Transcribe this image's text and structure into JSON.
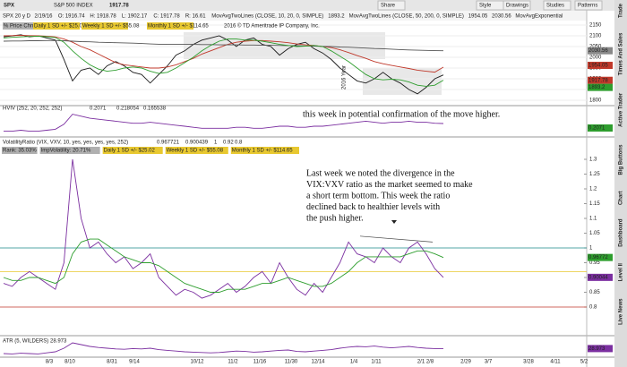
{
  "toolbar": {
    "symbol": "SPX",
    "name": "S&P 500 INDEX",
    "last": "1917.78",
    "buttons": [
      "Share",
      "Style",
      "Drawings",
      "Studies",
      "Patterns"
    ]
  },
  "header": {
    "items": [
      "SPX 20 y D",
      "2/19/16",
      "O: 1916.74",
      "H: 1918.78",
      "L: 1902.17",
      "C: 1917.78",
      "R: 16.61",
      "MovAvgTwoLines (CLOSE, 10, 20, 0, SIMPLE)",
      "1893.2",
      "MovAvgTwoLines (CLOSE, 50, 200, 0, SIMPLE)",
      "1954.05",
      "2030.56",
      "MovAvgExponential"
    ]
  },
  "price": {
    "labels": [
      "% Price Chng 4.85",
      "Daily 1 SD +/- $25.02",
      "Weekly 1 SD +/- $55.08",
      "Monthly 1 SD +/- $114.65"
    ],
    "copyright": "2016 © TD Ameritrade IP Company, Inc.",
    "year": "2016 Year",
    "ylim": [
      1800,
      2150
    ],
    "yticks": [
      2150,
      2100,
      2050,
      2000,
      1950,
      1900,
      1850,
      1800
    ],
    "current": [
      "2030.56",
      "1954.05",
      "1917.78",
      "1893.2"
    ],
    "series": [
      {
        "name": "Close",
        "color": "#1a1a1a",
        "values": [
          2095,
          2100,
          2105,
          2095,
          2100,
          2090,
          2080,
          1990,
          1890,
          1940,
          1950,
          1920,
          1960,
          1980,
          1960,
          1930,
          1920,
          1880,
          1920,
          1960,
          2010,
          2030,
          2060,
          2080,
          2090,
          2100,
          2080,
          2050,
          2080,
          2090,
          2060,
          2050,
          2010,
          2040,
          2060,
          2070,
          2040,
          2020,
          1990,
          1950,
          1920,
          1890,
          1880,
          1900,
          1930,
          1900,
          1880,
          1850,
          1830,
          1860,
          1900,
          1917.78
        ]
      },
      {
        "name": "SMA 50",
        "color": "#c0392b",
        "values": [
          2100,
          2101,
          2102,
          2101,
          2100,
          2098,
          2095,
          2085,
          2070,
          2050,
          2035,
          2015,
          1995,
          1975,
          1965,
          1960,
          1955,
          1950,
          1950,
          1955,
          1965,
          1980,
          1995,
          2015,
          2030,
          2045,
          2060,
          2070,
          2075,
          2078,
          2078,
          2075,
          2072,
          2068,
          2062,
          2058,
          2055,
          2050,
          2045,
          2035,
          2022,
          2008,
          1995,
          1980,
          1970,
          1962,
          1955,
          1948,
          1940,
          1935,
          1931,
          1954.05
        ]
      },
      {
        "name": "SMA 200",
        "color": "#555555",
        "values": [
          2075,
          2076,
          2076,
          2077,
          2077,
          2078,
          2078,
          2077,
          2075,
          2073,
          2072,
          2070,
          2069,
          2068,
          2067,
          2066,
          2064,
          2062,
          2061,
          2060,
          2060,
          2060,
          2060,
          2059,
          2059,
          2058,
          2058,
          2058,
          2057,
          2057,
          2056,
          2056,
          2055,
          2054,
          2054,
          2053,
          2052,
          2051,
          2050,
          2048,
          2047,
          2045,
          2043,
          2041,
          2040,
          2038,
          2036,
          2034,
          2033,
          2032,
          2031,
          2030.56
        ]
      },
      {
        "name": "SMA 20",
        "color": "#2e9e2e",
        "values": [
          2090,
          2093,
          2095,
          2097,
          2098,
          2096,
          2092,
          2070,
          2030,
          1995,
          1965,
          1945,
          1935,
          1940,
          1950,
          1955,
          1950,
          1935,
          1925,
          1930,
          1950,
          1975,
          2000,
          2030,
          2055,
          2075,
          2085,
          2085,
          2080,
          2080,
          2075,
          2068,
          2060,
          2055,
          2050,
          2052,
          2055,
          2050,
          2030,
          2005,
          1980,
          1950,
          1920,
          1900,
          1895,
          1898,
          1895,
          1885,
          1870,
          1865,
          1870,
          1893.2
        ]
      }
    ]
  },
  "hv": {
    "label": "HVIV (252, 20, 252, 252)",
    "values_text": [
      "0.2071",
      "0.218054",
      "0.165538"
    ],
    "note": "this week in potential confirmation of the move higher.",
    "current": "0.2071",
    "ylim": [
      0.1,
      0.35
    ],
    "series": [
      {
        "name": "HV",
        "color": "#7b2fa0",
        "values": [
          0.13,
          0.13,
          0.14,
          0.13,
          0.13,
          0.14,
          0.15,
          0.2,
          0.3,
          0.28,
          0.26,
          0.25,
          0.24,
          0.23,
          0.22,
          0.21,
          0.21,
          0.22,
          0.21,
          0.2,
          0.19,
          0.18,
          0.17,
          0.16,
          0.16,
          0.16,
          0.16,
          0.17,
          0.17,
          0.16,
          0.16,
          0.17,
          0.18,
          0.18,
          0.17,
          0.17,
          0.18,
          0.18,
          0.19,
          0.2,
          0.21,
          0.22,
          0.23,
          0.22,
          0.21,
          0.22,
          0.22,
          0.23,
          0.22,
          0.22,
          0.21,
          0.2071
        ]
      }
    ]
  },
  "ratio": {
    "label": "VolatilityRatio (VIX, VXV, 10, yes, yes, yes, yes, 252)",
    "values_text": [
      "0.967721",
      "0.900439",
      "1",
      "0.92",
      "0.8"
    ],
    "sub": [
      "Rank: 35.03%",
      "ImpVolatility: 20.71%",
      "Daily 1 SD +/- $25.02",
      "Weekly 1 SD +/- $55.08",
      "Monthly 1 SD +/- $114.65"
    ],
    "note": [
      "Last week we noted the divergence in the",
      "VIX:VXV ratio as the market seemed to make",
      "a short term bottom.  This week the ratio",
      "declined back to healthier levels with",
      "the push higher."
    ],
    "ylim": [
      0.8,
      1.3
    ],
    "yticks": [
      1.3,
      1.25,
      1.2,
      1.15,
      1.1,
      1.05,
      1,
      0.95,
      0.9,
      0.85,
      0.8
    ],
    "levels": [
      1,
      0.92,
      0.8
    ],
    "current": [
      "0.96772",
      "0.90044"
    ],
    "series": [
      {
        "name": "Ratio",
        "color": "#7b2fa0",
        "values": [
          0.88,
          0.87,
          0.9,
          0.92,
          0.9,
          0.88,
          0.86,
          0.95,
          1.3,
          1.1,
          1.0,
          1.02,
          0.98,
          0.95,
          0.97,
          0.93,
          0.95,
          0.98,
          0.9,
          0.87,
          0.84,
          0.86,
          0.85,
          0.83,
          0.84,
          0.86,
          0.88,
          0.85,
          0.87,
          0.9,
          0.92,
          0.88,
          0.95,
          0.9,
          0.86,
          0.84,
          0.88,
          0.85,
          0.9,
          0.95,
          1.02,
          0.98,
          0.97,
          0.95,
          1.0,
          0.97,
          0.95,
          1.0,
          1.02,
          0.98,
          0.93,
          0.900439
        ]
      },
      {
        "name": "Ratio MA",
        "color": "#2e9e2e",
        "values": [
          0.9,
          0.89,
          0.89,
          0.9,
          0.9,
          0.89,
          0.88,
          0.9,
          0.98,
          1.02,
          1.03,
          1.03,
          1.01,
          0.99,
          0.97,
          0.96,
          0.95,
          0.95,
          0.94,
          0.92,
          0.9,
          0.88,
          0.87,
          0.86,
          0.85,
          0.85,
          0.86,
          0.86,
          0.86,
          0.87,
          0.88,
          0.88,
          0.89,
          0.9,
          0.89,
          0.88,
          0.87,
          0.87,
          0.88,
          0.9,
          0.92,
          0.95,
          0.97,
          0.97,
          0.97,
          0.97,
          0.97,
          0.98,
          0.99,
          0.99,
          0.98,
          0.967721
        ]
      }
    ]
  },
  "atr": {
    "label": "ATR (5, WILDERS)",
    "value_text": "28.973",
    "current": "28.973",
    "ylim": [
      10,
      50
    ],
    "series": [
      {
        "name": "ATR",
        "color": "#7b2fa0",
        "values": [
          15,
          14,
          16,
          15,
          14,
          17,
          20,
          30,
          45,
          40,
          35,
          32,
          30,
          28,
          27,
          29,
          28,
          30,
          26,
          24,
          22,
          20,
          19,
          18,
          17,
          18,
          20,
          22,
          21,
          19,
          20,
          22,
          24,
          25,
          21,
          20,
          22,
          24,
          26,
          30,
          33,
          35,
          34,
          36,
          33,
          31,
          33,
          35,
          32,
          30,
          29,
          28.973
        ]
      }
    ]
  },
  "xaxis": [
    "8/3",
    "8/10",
    "8/31",
    "9/14",
    "10/12",
    "11/2",
    "11/16",
    "11/30",
    "12/14",
    "1/4",
    "1/11",
    "2/1",
    "2/8",
    "2/29",
    "3/7",
    "3/28",
    "4/11",
    "5/2"
  ],
  "sidebar": [
    "Trade",
    "Times And Sales",
    "Active Trader",
    "Big Buttons",
    "Chart",
    "Dashboard",
    "Level II",
    "Live News"
  ]
}
